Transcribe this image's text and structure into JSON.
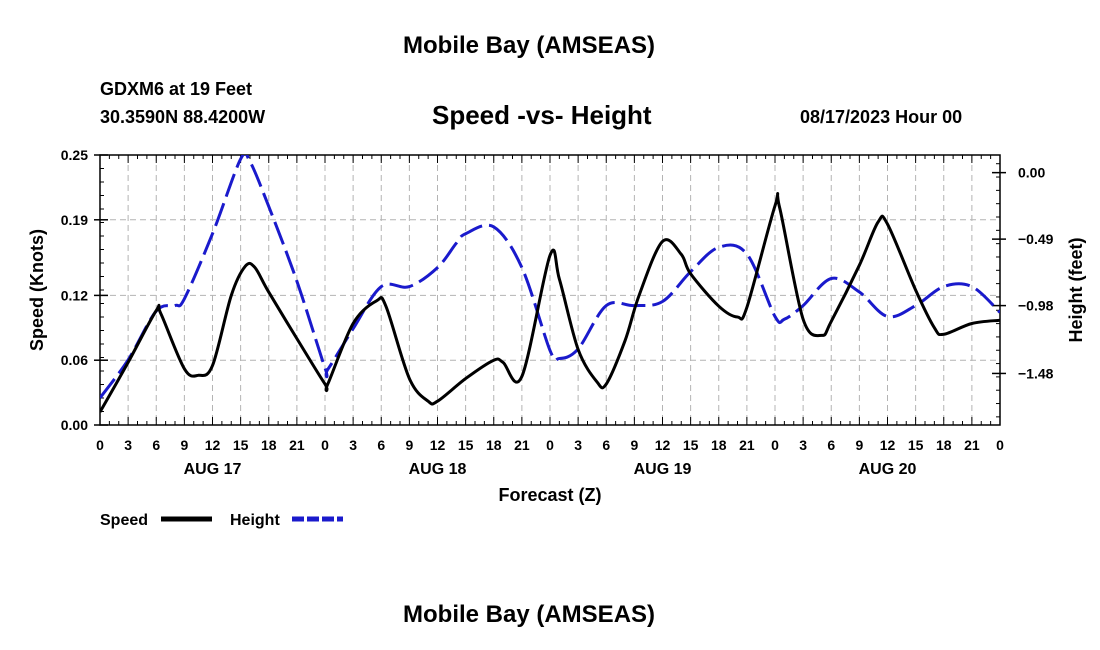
{
  "header": {
    "top_title": "Mobile Bay (AMSEAS)",
    "station": "GDXM6 at 19 Feet",
    "location": "30.3590N  88.4200W",
    "chart_title": "Speed -vs- Height",
    "run_time": "08/17/2023 Hour 00",
    "bottom_title": "Mobile Bay (AMSEAS)"
  },
  "legend": {
    "speed_label": "Speed",
    "height_label": "Height",
    "speed_color": "#000000",
    "height_color": "#1a1acc"
  },
  "chart_data": {
    "type": "line",
    "title": "Speed -vs- Height",
    "xlabel": "Forecast (Z)",
    "ylabel": "Speed (Knots)",
    "y2label": "Height (feet)",
    "grid": true,
    "legend_position": "bottom-left",
    "xlim": [
      0,
      96
    ],
    "ylim": [
      0,
      0.25
    ],
    "y2lim": [
      -1.86,
      0.13
    ],
    "xticks": [
      0,
      3,
      6,
      9,
      12,
      15,
      18,
      21,
      24,
      27,
      30,
      33,
      36,
      39,
      42,
      45,
      48,
      51,
      54,
      57,
      60,
      63,
      66,
      69,
      72,
      75,
      78,
      81,
      84,
      87,
      90,
      93,
      96
    ],
    "xtick_labels": [
      "0",
      "3",
      "6",
      "9",
      "12",
      "15",
      "18",
      "21",
      "0",
      "3",
      "6",
      "9",
      "12",
      "15",
      "18",
      "21",
      "0",
      "3",
      "6",
      "9",
      "12",
      "15",
      "18",
      "21",
      "0",
      "3",
      "6",
      "9",
      "12",
      "15",
      "18",
      "21",
      "0"
    ],
    "day_labels": [
      {
        "label": "AUG 17",
        "x": 12
      },
      {
        "label": "AUG 18",
        "x": 36
      },
      {
        "label": "AUG 19",
        "x": 60
      },
      {
        "label": "AUG 20",
        "x": 84
      }
    ],
    "yticks": [
      0.0,
      0.06,
      0.12,
      0.19,
      0.25
    ],
    "ytick_labels": [
      "0.00",
      "0.06",
      "0.12",
      "0.19",
      "0.25"
    ],
    "y2ticks": [
      0.0,
      -0.49,
      -0.98,
      -1.48
    ],
    "y2tick_labels": [
      "0.00",
      "-0.49",
      "-0.98",
      "-1.48"
    ],
    "series": [
      {
        "name": "Speed",
        "axis": "left",
        "x": [
          0,
          3,
          6,
          6.5,
          9,
          10.5,
          12,
          14,
          15.5,
          16.5,
          18,
          21,
          24,
          24.3,
          27,
          29.5,
          30.5,
          33,
          35,
          36,
          39,
          42,
          43,
          45,
          48,
          49,
          51,
          53,
          54,
          56,
          57.5,
          60,
          62,
          63,
          66,
          68,
          69,
          72,
          72.5,
          75,
          77,
          78,
          81,
          83,
          84,
          87,
          89,
          90,
          93,
          96
        ],
        "values": [
          0.012,
          0.058,
          0.106,
          0.103,
          0.052,
          0.046,
          0.055,
          0.12,
          0.147,
          0.146,
          0.123,
          0.08,
          0.038,
          0.038,
          0.094,
          0.115,
          0.11,
          0.043,
          0.022,
          0.022,
          0.043,
          0.06,
          0.058,
          0.045,
          0.157,
          0.135,
          0.07,
          0.04,
          0.038,
          0.078,
          0.12,
          0.17,
          0.158,
          0.14,
          0.11,
          0.1,
          0.109,
          0.203,
          0.201,
          0.098,
          0.083,
          0.096,
          0.148,
          0.188,
          0.186,
          0.125,
          0.09,
          0.084,
          0.094,
          0.097
        ]
      },
      {
        "name": "Height",
        "axis": "right",
        "x": [
          0,
          3,
          6,
          8,
          9,
          12,
          15,
          16,
          18,
          21,
          24,
          24.3,
          27,
          30,
          33,
          36,
          38,
          39,
          42,
          45,
          48,
          49,
          51,
          54,
          57,
          60,
          63,
          66,
          69,
          72,
          73,
          75,
          78,
          81,
          84,
          87,
          90,
          93,
          96
        ],
        "values": [
          -1.66,
          -1.38,
          -1.02,
          -0.98,
          -0.93,
          -0.45,
          0.1,
          0.08,
          -0.25,
          -0.8,
          -1.44,
          -1.45,
          -1.15,
          -0.84,
          -0.84,
          -0.7,
          -0.52,
          -0.45,
          -0.4,
          -0.7,
          -1.31,
          -1.37,
          -1.3,
          -0.98,
          -0.98,
          -0.95,
          -0.73,
          -0.55,
          -0.6,
          -1.06,
          -1.08,
          -0.98,
          -0.78,
          -0.88,
          -1.06,
          -0.98,
          -0.84,
          -0.84,
          -1.03
        ]
      }
    ]
  }
}
